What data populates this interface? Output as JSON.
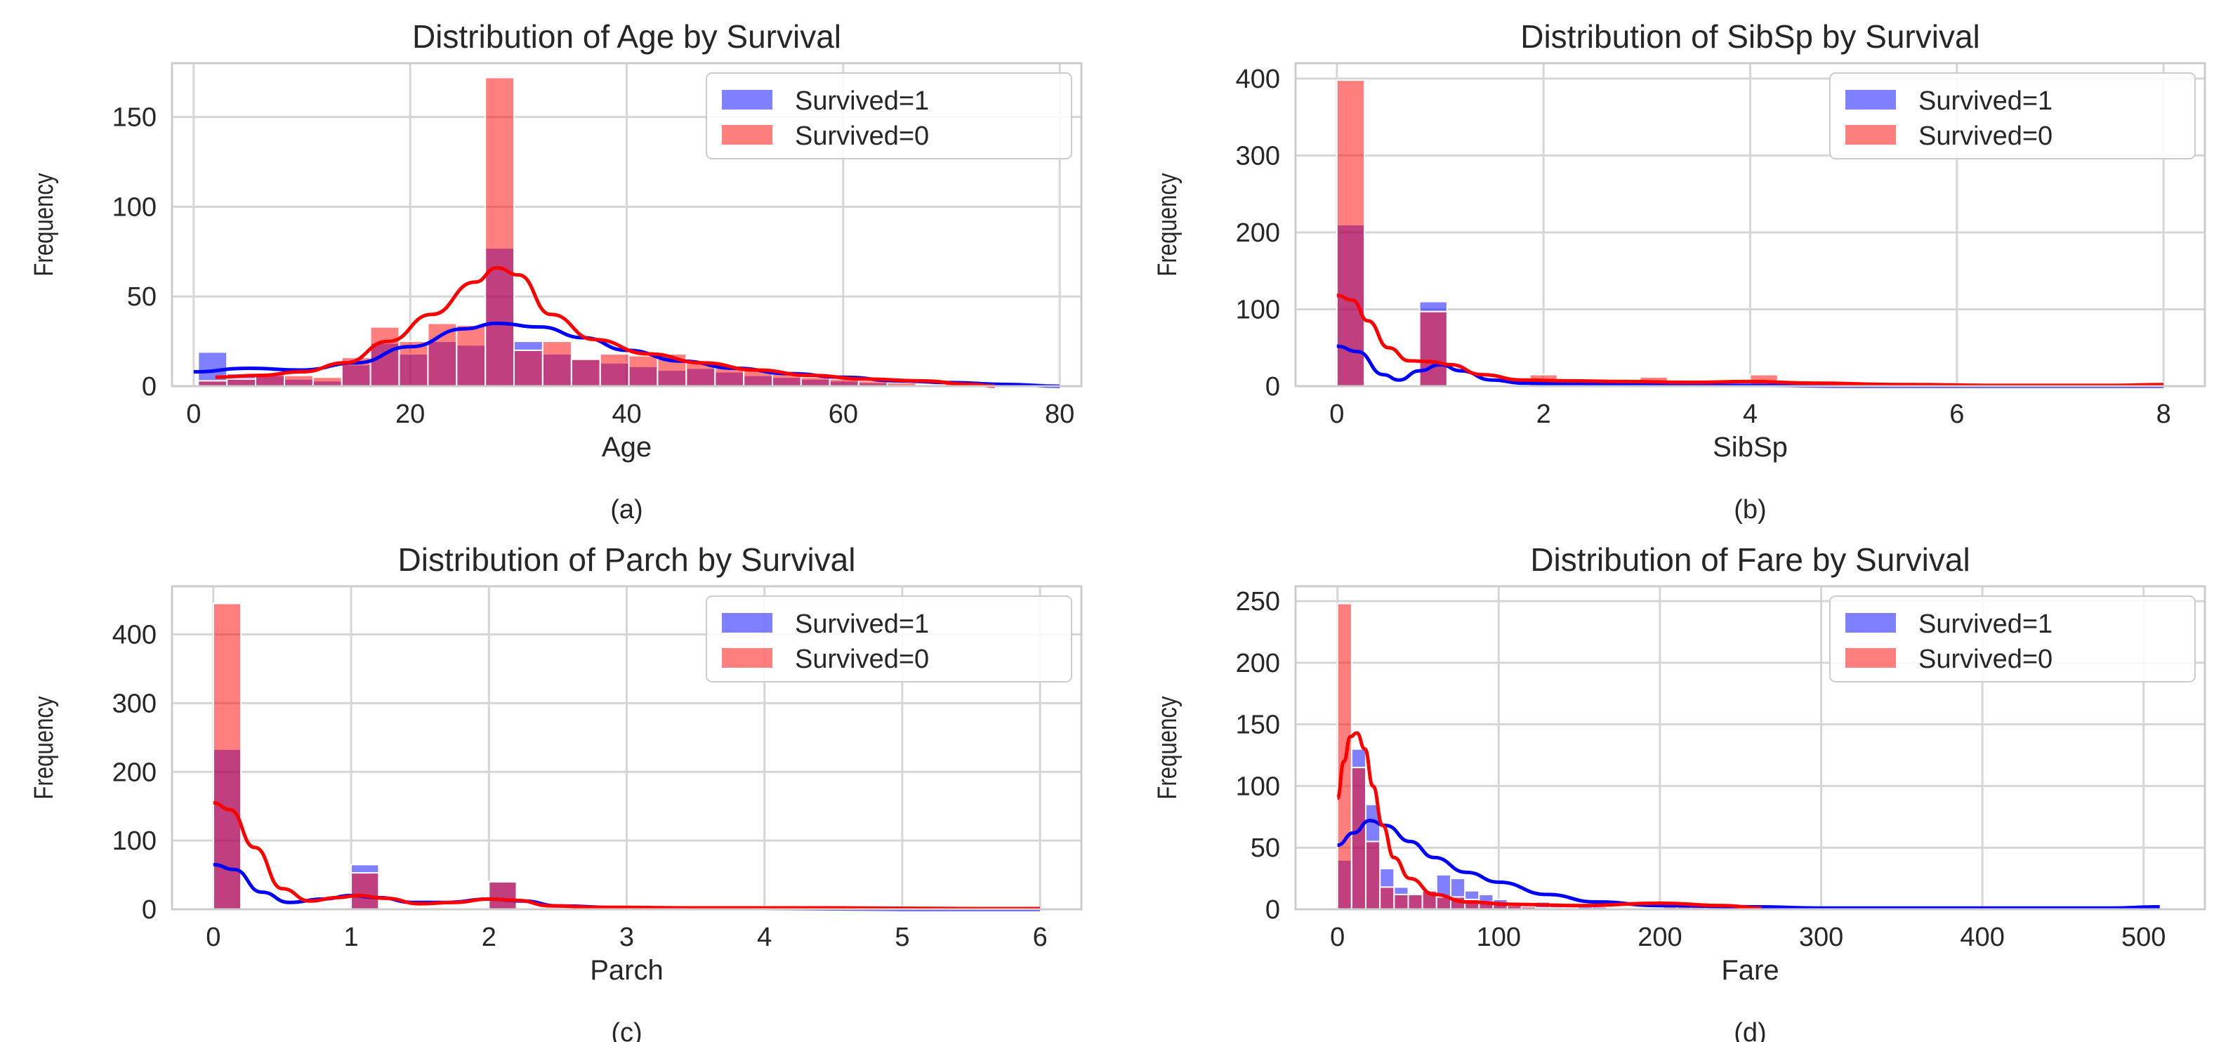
{
  "figure": {
    "colors": {
      "survived": "#0000ff",
      "not_survived": "#ff0000",
      "grid": "#d6d6d6",
      "axes_edge": "#cccccc",
      "background": "#ffffff"
    }
  },
  "chart_data": [
    {
      "type": "bar",
      "title": "Distribution of Age by Survival",
      "xlabel": "Age",
      "ylabel": "Frequency",
      "caption": "(a)",
      "xlim": [
        -2,
        82
      ],
      "ylim": [
        0,
        180
      ],
      "xticks": [
        0,
        20,
        40,
        60,
        80
      ],
      "yticks": [
        0,
        50,
        100,
        150
      ],
      "bin_edges": [
        0.42,
        3.07,
        5.72,
        8.38,
        11.03,
        13.68,
        16.33,
        18.98,
        21.64,
        24.29,
        26.94,
        29.59,
        32.24,
        34.9,
        37.55,
        40.2,
        42.85,
        45.5,
        48.16,
        50.81,
        53.46,
        56.11,
        58.76,
        61.42,
        64.07,
        66.72,
        69.37,
        72.02,
        74.68,
        77.33,
        80.0
      ],
      "legend": [
        "Survived=1",
        "Survived=0"
      ],
      "legend_position": "upper right",
      "series": [
        {
          "name": "Survived=1",
          "values": [
            19,
            7,
            6,
            4,
            3,
            12,
            24,
            18,
            25,
            23,
            77,
            25,
            18,
            15,
            13,
            11,
            9,
            10,
            8,
            6,
            5,
            4,
            3,
            2,
            1,
            0,
            0,
            0,
            0,
            1
          ],
          "kde": [
            [
              0,
              8
            ],
            [
              5,
              10
            ],
            [
              10,
              9
            ],
            [
              15,
              13
            ],
            [
              20,
              22
            ],
            [
              25,
              32
            ],
            [
              28,
              35
            ],
            [
              32,
              33
            ],
            [
              36,
              27
            ],
            [
              40,
              20
            ],
            [
              45,
              14
            ],
            [
              50,
              10
            ],
            [
              55,
              7
            ],
            [
              60,
              5
            ],
            [
              65,
              3
            ],
            [
              70,
              2
            ],
            [
              75,
              1
            ],
            [
              80,
              0
            ]
          ]
        },
        {
          "name": "Survived=0",
          "values": [
            3,
            4,
            7,
            6,
            5,
            16,
            33,
            25,
            35,
            34,
            172,
            20,
            25,
            15,
            18,
            17,
            18,
            13,
            10,
            9,
            8,
            5,
            4,
            3,
            2,
            1,
            3,
            0,
            0,
            0
          ],
          "kde": [
            [
              2,
              5
            ],
            [
              6,
              6
            ],
            [
              10,
              8
            ],
            [
              14,
              13
            ],
            [
              18,
              25
            ],
            [
              22,
              40
            ],
            [
              26,
              58
            ],
            [
              28,
              66
            ],
            [
              30,
              62
            ],
            [
              33,
              40
            ],
            [
              37,
              26
            ],
            [
              42,
              18
            ],
            [
              47,
              13
            ],
            [
              52,
              9
            ],
            [
              57,
              6
            ],
            [
              62,
              4
            ],
            [
              67,
              3
            ],
            [
              72,
              1
            ],
            [
              74,
              0
            ]
          ]
        }
      ]
    },
    {
      "type": "bar",
      "title": "Distribution of SibSp by Survival",
      "xlabel": "SibSp",
      "ylabel": "Frequency",
      "caption": "(b)",
      "xlim": [
        -0.4,
        8.4
      ],
      "ylim": [
        0,
        420
      ],
      "xticks": [
        0,
        2,
        4,
        6,
        8
      ],
      "yticks": [
        0,
        100,
        200,
        300,
        400
      ],
      "bin_edges": [
        0,
        0.267,
        0.533,
        0.8,
        1.067,
        1.333,
        1.6,
        1.867,
        2.133,
        2.4,
        2.667,
        2.933,
        3.2,
        3.467,
        3.733,
        4.0,
        4.267,
        4.533,
        4.8,
        5.067,
        5.333,
        5.6,
        5.867,
        6.133,
        6.4,
        6.667,
        6.933,
        7.2,
        7.467,
        7.733,
        8.0
      ],
      "legend": [
        "Survived=1",
        "Survived=0"
      ],
      "legend_position": "upper right",
      "series": [
        {
          "name": "Survived=1",
          "values": [
            210,
            0,
            0,
            110,
            0,
            0,
            0,
            10,
            0,
            0,
            0,
            3,
            0,
            0,
            0,
            3,
            0,
            0,
            0,
            0,
            0,
            0,
            0,
            0,
            0,
            0,
            0,
            0,
            0,
            0
          ],
          "kde": [
            [
              0,
              52
            ],
            [
              0.2,
              45
            ],
            [
              0.45,
              15
            ],
            [
              0.6,
              8
            ],
            [
              0.8,
              20
            ],
            [
              1.0,
              28
            ],
            [
              1.2,
              20
            ],
            [
              1.5,
              8
            ],
            [
              1.8,
              4
            ],
            [
              2.2,
              3
            ],
            [
              3,
              2
            ],
            [
              4,
              1
            ],
            [
              5,
              0
            ],
            [
              6,
              0
            ],
            [
              7,
              0
            ],
            [
              8,
              0
            ]
          ]
        },
        {
          "name": "Survived=0",
          "values": [
            398,
            0,
            0,
            97,
            0,
            0,
            0,
            15,
            0,
            0,
            0,
            12,
            0,
            0,
            0,
            15,
            0,
            0,
            0,
            0,
            0,
            0,
            0,
            0,
            0,
            0,
            0,
            0,
            0,
            5
          ],
          "kde": [
            [
              0,
              118
            ],
            [
              0.15,
              112
            ],
            [
              0.3,
              85
            ],
            [
              0.5,
              50
            ],
            [
              0.7,
              33
            ],
            [
              0.9,
              32
            ],
            [
              1.1,
              28
            ],
            [
              1.4,
              15
            ],
            [
              1.8,
              8
            ],
            [
              2.2,
              7
            ],
            [
              2.8,
              6
            ],
            [
              3.4,
              5
            ],
            [
              4.0,
              6
            ],
            [
              4.6,
              4
            ],
            [
              5.5,
              2
            ],
            [
              6.5,
              1
            ],
            [
              7.5,
              1
            ],
            [
              8,
              2
            ]
          ]
        }
      ]
    },
    {
      "type": "bar",
      "title": "Distribution of Parch by Survival",
      "xlabel": "Parch",
      "ylabel": "Frequency",
      "caption": "(c)",
      "xlim": [
        -0.3,
        6.3
      ],
      "ylim": [
        0,
        470
      ],
      "xticks": [
        0,
        1,
        2,
        3,
        4,
        5,
        6
      ],
      "yticks": [
        0,
        100,
        200,
        300,
        400
      ],
      "bin_edges": [
        0,
        0.2,
        0.4,
        0.6,
        0.8,
        1.0,
        1.2,
        1.4,
        1.6,
        1.8,
        2.0,
        2.2,
        2.4,
        2.6,
        2.8,
        3.0,
        3.2,
        3.4,
        3.6,
        3.8,
        4.0,
        4.2,
        4.4,
        4.6,
        4.8,
        5.0,
        5.2,
        5.4,
        5.6,
        5.8,
        6.0
      ],
      "legend": [
        "Survived=1",
        "Survived=0"
      ],
      "legend_position": "upper right",
      "series": [
        {
          "name": "Survived=1",
          "values": [
            233,
            0,
            0,
            0,
            0,
            65,
            0,
            0,
            0,
            0,
            40,
            0,
            0,
            0,
            0,
            3,
            0,
            0,
            0,
            0,
            0,
            0,
            0,
            0,
            0,
            1,
            0,
            0,
            0,
            0
          ],
          "kde": [
            [
              0,
              65
            ],
            [
              0.15,
              58
            ],
            [
              0.35,
              25
            ],
            [
              0.55,
              10
            ],
            [
              0.8,
              15
            ],
            [
              1.0,
              20
            ],
            [
              1.2,
              17
            ],
            [
              1.45,
              10
            ],
            [
              1.7,
              10
            ],
            [
              2.0,
              15
            ],
            [
              2.25,
              12
            ],
            [
              2.5,
              5
            ],
            [
              3,
              2
            ],
            [
              4,
              1
            ],
            [
              5,
              0
            ],
            [
              6,
              0
            ]
          ]
        },
        {
          "name": "Survived=0",
          "values": [
            445,
            0,
            0,
            0,
            0,
            53,
            0,
            0,
            0,
            0,
            40,
            0,
            0,
            0,
            0,
            2,
            0,
            0,
            0,
            0,
            4,
            0,
            0,
            0,
            0,
            4,
            0,
            0,
            0,
            1
          ],
          "kde": [
            [
              0,
              155
            ],
            [
              0.12,
              145
            ],
            [
              0.3,
              90
            ],
            [
              0.5,
              30
            ],
            [
              0.7,
              12
            ],
            [
              0.9,
              17
            ],
            [
              1.05,
              20
            ],
            [
              1.25,
              16
            ],
            [
              1.5,
              8
            ],
            [
              1.75,
              10
            ],
            [
              2.0,
              15
            ],
            [
              2.2,
              13
            ],
            [
              2.45,
              5
            ],
            [
              2.8,
              3
            ],
            [
              3.5,
              2
            ],
            [
              4.5,
              2
            ],
            [
              5.5,
              1
            ],
            [
              6,
              1
            ]
          ]
        }
      ]
    },
    {
      "type": "bar",
      "title": "Distribution of Fare by Survival",
      "xlabel": "Fare",
      "ylabel": "Frequency",
      "caption": "(d)",
      "xlim": [
        -26,
        538
      ],
      "ylim": [
        0,
        262
      ],
      "xticks": [
        0,
        100,
        200,
        300,
        400,
        500
      ],
      "yticks": [
        0,
        50,
        100,
        150,
        200,
        250
      ],
      "bin_edges": [
        0,
        8.78,
        17.56,
        26.34,
        35.12,
        43.9,
        52.68,
        61.46,
        70.24,
        79.02,
        87.8,
        96.58,
        105.36,
        114.14,
        122.92,
        131.7,
        140.48,
        149.26,
        158.04,
        166.82,
        175.6,
        184.38,
        193.16,
        201.94,
        210.72,
        219.5,
        228.28,
        237.06,
        245.84,
        254.62,
        263.4
      ],
      "legend": [
        "Survived=1",
        "Survived=0"
      ],
      "legend_position": "upper right",
      "series": [
        {
          "name": "Survived=1",
          "values": [
            40,
            130,
            85,
            33,
            18,
            12,
            15,
            28,
            25,
            15,
            12,
            8,
            6,
            5,
            6,
            3,
            3,
            2,
            2,
            1,
            1,
            1,
            1,
            1,
            0,
            1,
            1,
            1,
            1,
            1
          ],
          "kde": [
            [
              0,
              52
            ],
            [
              10,
              62
            ],
            [
              20,
              72
            ],
            [
              30,
              68
            ],
            [
              45,
              55
            ],
            [
              60,
              42
            ],
            [
              80,
              30
            ],
            [
              100,
              22
            ],
            [
              130,
              12
            ],
            [
              160,
              6
            ],
            [
              200,
              3
            ],
            [
              260,
              2
            ],
            [
              300,
              1
            ],
            [
              350,
              1
            ],
            [
              420,
              1
            ],
            [
              480,
              1
            ],
            [
              510,
              2
            ]
          ]
        },
        {
          "name": "Survived=0",
          "values": [
            248,
            115,
            55,
            18,
            12,
            12,
            15,
            10,
            10,
            8,
            6,
            4,
            3,
            2,
            1,
            1,
            1,
            0,
            0,
            0,
            0,
            1,
            1,
            2,
            3,
            2,
            2,
            1,
            1,
            0
          ],
          "kde": [
            [
              0,
              90
            ],
            [
              4,
              120
            ],
            [
              8,
              140
            ],
            [
              12,
              143
            ],
            [
              17,
              130
            ],
            [
              22,
              100
            ],
            [
              28,
              68
            ],
            [
              35,
              42
            ],
            [
              45,
              25
            ],
            [
              60,
              12
            ],
            [
              80,
              6
            ],
            [
              110,
              4
            ],
            [
              150,
              3
            ],
            [
              200,
              5
            ],
            [
              240,
              3
            ],
            [
              263,
              1
            ]
          ]
        }
      ]
    }
  ]
}
